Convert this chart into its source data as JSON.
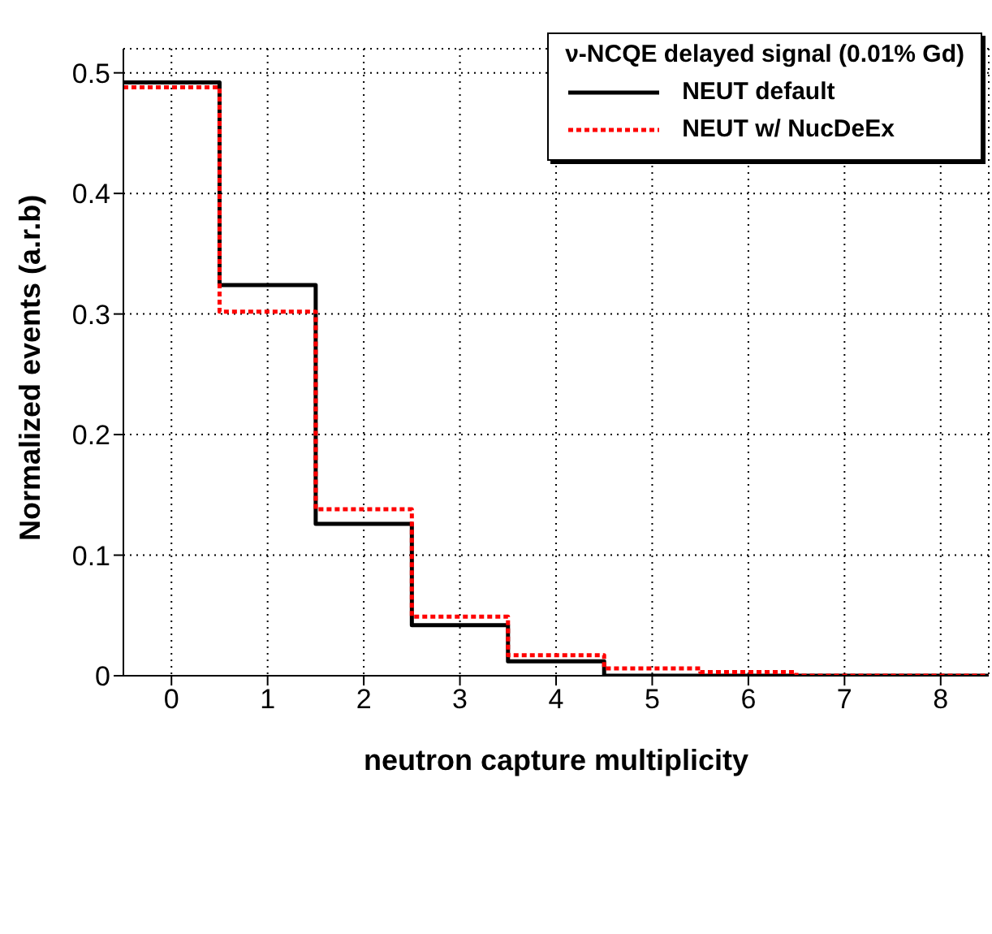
{
  "chart_data": {
    "type": "histogram",
    "xlabel": "neutron capture multiplicity",
    "ylabel": "Normalized events (a.r.b)",
    "legend_title": "ν-NCQE delayed signal (0.01% Gd)",
    "bins": [
      -0.5,
      0.5,
      1.5,
      2.5,
      3.5,
      4.5,
      5.5,
      6.5,
      7.5,
      8.5
    ],
    "series": [
      {
        "name": "NEUT default",
        "color": "#000000",
        "line_style": "solid",
        "values": [
          0.492,
          0.324,
          0.126,
          0.042,
          0.012,
          0,
          0,
          0,
          0
        ]
      },
      {
        "name": "NEUT w/ NucDeEx",
        "color": "#ff0000",
        "line_style": "dotted",
        "values": [
          0.488,
          0.302,
          0.138,
          0.049,
          0.017,
          0.006,
          0.003,
          0,
          0
        ]
      }
    ],
    "xlim": [
      -0.5,
      8.5
    ],
    "xticks": [
      0,
      1,
      2,
      3,
      4,
      5,
      6,
      7,
      8
    ],
    "ylim": [
      0,
      0.52
    ],
    "yticks": [
      0,
      0.1,
      0.2,
      0.3,
      0.4,
      0.5
    ],
    "grid": true,
    "legend": "top right"
  }
}
